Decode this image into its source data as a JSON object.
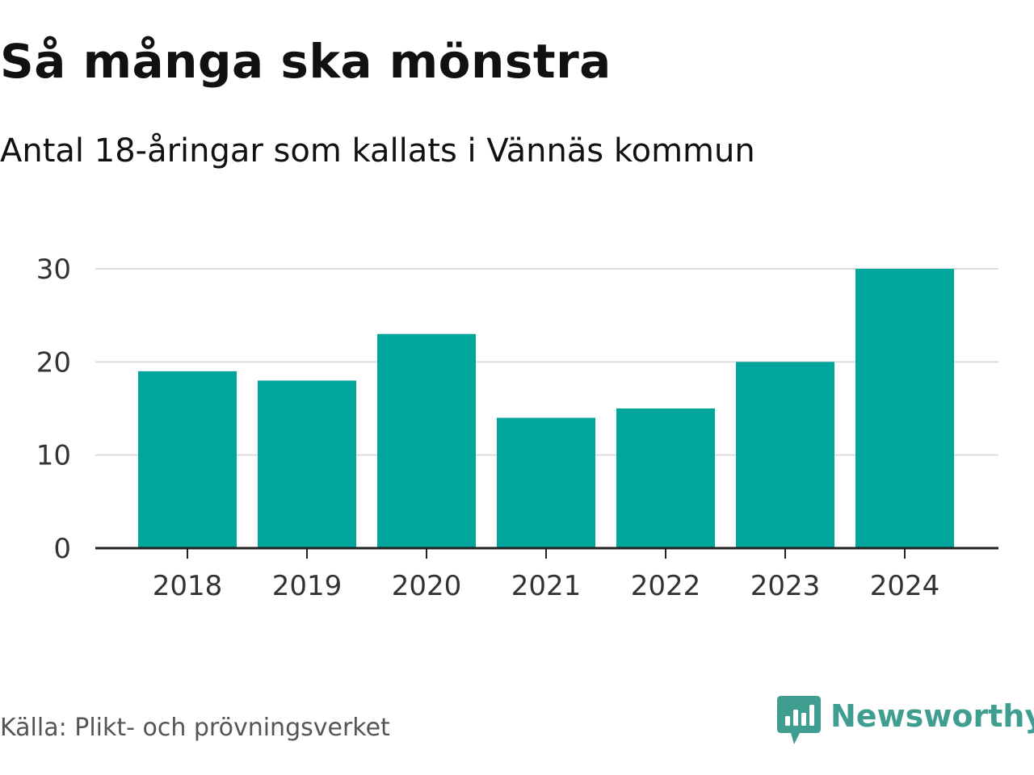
{
  "header": {
    "title": "Så många ska mönstra",
    "subtitle": "Antal 18-åringar som kallats i Vännäs kommun"
  },
  "footer": {
    "source": "Källa: Plikt- och prövningsverket",
    "brand": "Newsworthy",
    "brand_icon": "newsworthy-logo-icon"
  },
  "colors": {
    "bar": "#00a59b",
    "grid": "#dddddd",
    "axis": "#222222",
    "brand": "#3f9e8f"
  },
  "chart_data": {
    "type": "bar",
    "title": "Så många ska mönstra",
    "subtitle": "Antal 18-åringar som kallats i Vännäs kommun",
    "categories": [
      "2018",
      "2019",
      "2020",
      "2021",
      "2022",
      "2023",
      "2024"
    ],
    "values": [
      19,
      18,
      23,
      14,
      15,
      20,
      30
    ],
    "xlabel": "",
    "ylabel": "",
    "ylim": [
      0,
      30
    ],
    "yticks": [
      0,
      10,
      20,
      30
    ],
    "grid": true,
    "legend": "none"
  }
}
